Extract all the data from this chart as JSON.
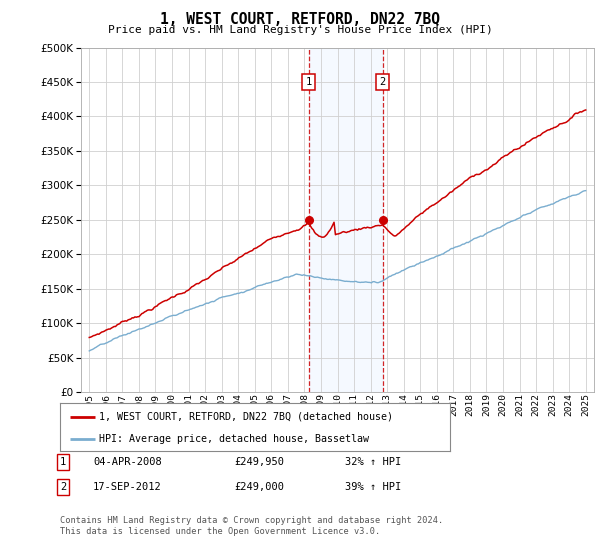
{
  "title": "1, WEST COURT, RETFORD, DN22 7BQ",
  "subtitle": "Price paid vs. HM Land Registry's House Price Index (HPI)",
  "property_label": "1, WEST COURT, RETFORD, DN22 7BQ (detached house)",
  "hpi_label": "HPI: Average price, detached house, Bassetlaw",
  "transaction1_label": "1",
  "transaction1_date": "04-APR-2008",
  "transaction1_price": "£249,950",
  "transaction1_hpi": "32% ↑ HPI",
  "transaction2_label": "2",
  "transaction2_date": "17-SEP-2012",
  "transaction2_price": "£249,000",
  "transaction2_hpi": "39% ↑ HPI",
  "footnote": "Contains HM Land Registry data © Crown copyright and database right 2024.\nThis data is licensed under the Open Government Licence v3.0.",
  "property_color": "#cc0000",
  "hpi_color": "#7aadcf",
  "highlight_color": "#ddeeff",
  "transaction_box_color": "#cc0000",
  "ylim": [
    0,
    500000
  ],
  "yticks": [
    0,
    50000,
    100000,
    150000,
    200000,
    250000,
    300000,
    350000,
    400000,
    450000,
    500000
  ],
  "x_start_year": 1995,
  "x_end_year": 2025,
  "transaction1_x": 2008.25,
  "transaction2_x": 2012.72
}
